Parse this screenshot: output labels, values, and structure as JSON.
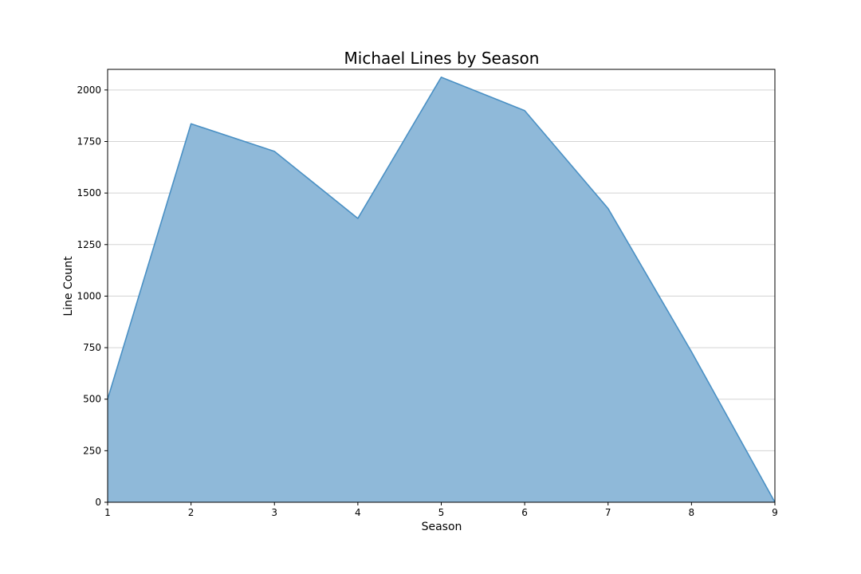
{
  "chart_data": {
    "type": "area",
    "title": "Michael Lines by Season",
    "xlabel": "Season",
    "ylabel": "Line Count",
    "x": [
      1,
      2,
      3,
      4,
      5,
      6,
      7,
      8,
      9
    ],
    "series": [
      {
        "values": [
          500,
          1836,
          1702,
          1377,
          2062,
          1900,
          1425,
          730,
          0
        ]
      }
    ],
    "xlim": [
      1,
      9
    ],
    "ylim": [
      0,
      2100
    ],
    "xticks": [
      "1",
      "2",
      "3",
      "4",
      "5",
      "6",
      "7",
      "8",
      "9"
    ],
    "yticks": [
      "0",
      "250",
      "500",
      "750",
      "1000",
      "1250",
      "1500",
      "1750",
      "2000"
    ],
    "grid": "horizontal",
    "legend": "none",
    "colors": {
      "fill": "#8fb9d9",
      "line": "#4a90c4",
      "grid": "#d3d3d3",
      "axis": "#000000"
    }
  }
}
